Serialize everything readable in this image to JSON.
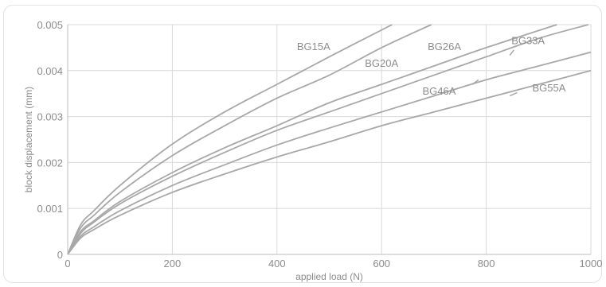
{
  "chart_data": {
    "type": "line",
    "title": "",
    "xlabel": "applied load (N)",
    "ylabel": "block displacement (mm)",
    "xlim": [
      0,
      1000
    ],
    "ylim": [
      0,
      0.005
    ],
    "x_ticks": [
      "0",
      "200",
      "400",
      "600",
      "800",
      "1000"
    ],
    "y_ticks": [
      "0",
      "0.001",
      "0.002",
      "0.003",
      "0.004",
      "0.005"
    ],
    "grid": true,
    "legend": "labels on lines",
    "line_color": "#a8a8a8",
    "series": [
      {
        "name": "BG15A",
        "x": [
          0,
          25,
          50,
          100,
          200,
          300,
          400,
          500,
          620
        ],
        "y": [
          0,
          0.00065,
          0.00095,
          0.0015,
          0.0024,
          0.0031,
          0.0037,
          0.0043,
          0.005
        ]
      },
      {
        "name": "BG20A",
        "x": [
          0,
          25,
          50,
          100,
          200,
          300,
          400,
          500,
          600,
          695
        ],
        "y": [
          0,
          0.00058,
          0.00085,
          0.00135,
          0.00215,
          0.0028,
          0.0034,
          0.0039,
          0.0045,
          0.005
        ]
      },
      {
        "name": "BG26A",
        "x": [
          0,
          25,
          50,
          100,
          200,
          300,
          400,
          500,
          600,
          700,
          800,
          935
        ],
        "y": [
          0,
          0.0005,
          0.00073,
          0.00115,
          0.00178,
          0.00232,
          0.0028,
          0.0033,
          0.0037,
          0.0041,
          0.0045,
          0.005
        ]
      },
      {
        "name": "BG33A",
        "x": [
          0,
          25,
          50,
          100,
          200,
          300,
          400,
          500,
          600,
          700,
          800,
          900,
          995
        ],
        "y": [
          0,
          0.00046,
          0.0007,
          0.0011,
          0.0017,
          0.00222,
          0.0027,
          0.0031,
          0.0035,
          0.0039,
          0.0043,
          0.0047,
          0.005
        ]
      },
      {
        "name": "BG46A",
        "x": [
          0,
          25,
          50,
          100,
          200,
          300,
          400,
          500,
          600,
          700,
          800,
          900,
          1000
        ],
        "y": [
          0,
          0.0004,
          0.0006,
          0.00095,
          0.0015,
          0.00195,
          0.00238,
          0.00275,
          0.0031,
          0.00345,
          0.0038,
          0.0041,
          0.0044
        ]
      },
      {
        "name": "BG55A",
        "x": [
          0,
          25,
          50,
          100,
          200,
          300,
          400,
          500,
          600,
          700,
          800,
          900,
          1000
        ],
        "y": [
          0,
          0.00036,
          0.00054,
          0.00085,
          0.00135,
          0.00175,
          0.00212,
          0.00245,
          0.0028,
          0.0031,
          0.0034,
          0.0037,
          0.004
        ]
      }
    ]
  }
}
